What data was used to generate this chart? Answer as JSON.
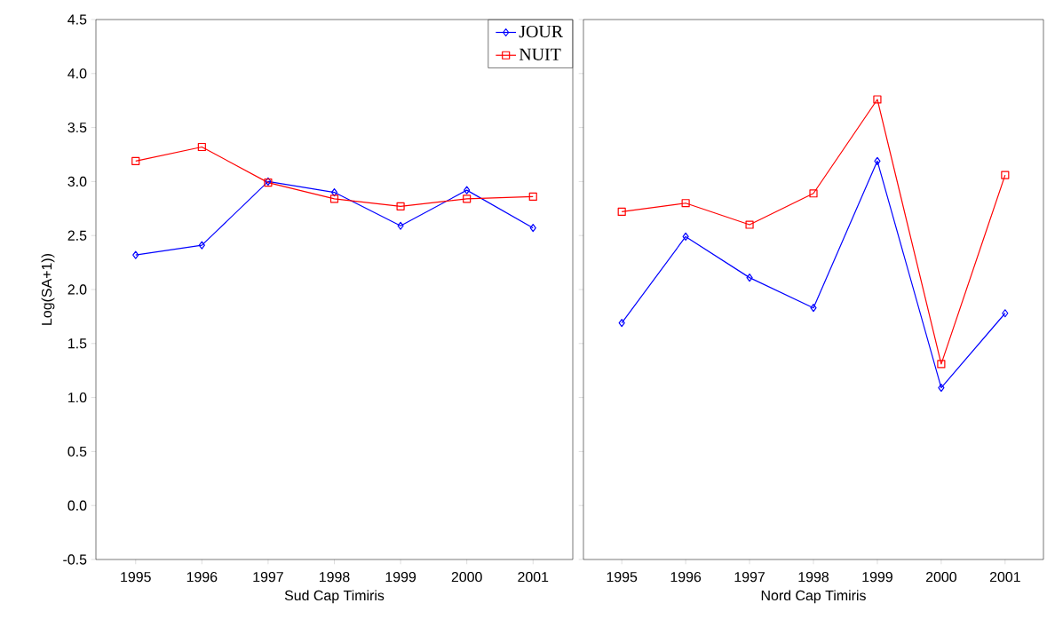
{
  "chart_data": [
    {
      "type": "line",
      "ylabel": "Log(SA+1))",
      "xlabel": "Sud Cap Timiris",
      "categories": [
        "1995",
        "1996",
        "1997",
        "1998",
        "1999",
        "2000",
        "2001"
      ],
      "ylim": [
        -0.5,
        4.5
      ],
      "yticks": [
        {
          "value": -0.5,
          "label": "-0.5"
        },
        {
          "value": 0,
          "label": "0.0"
        },
        {
          "value": 0.5,
          "label": "0.5"
        },
        {
          "value": 1,
          "label": "1.0"
        },
        {
          "value": 1.5,
          "label": "1.5"
        },
        {
          "value": 2,
          "label": "2.0"
        },
        {
          "value": 2.5,
          "label": "2.5"
        },
        {
          "value": 3,
          "label": "3.0"
        },
        {
          "value": 3.5,
          "label": "3.5"
        },
        {
          "value": 4,
          "label": "4.0"
        },
        {
          "value": 4.5,
          "label": "4.5"
        }
      ],
      "legend": "top right",
      "grid": false,
      "series": [
        {
          "name": "JOUR",
          "color": "#0000ff",
          "marker": "diamond",
          "values": [
            2.32,
            2.41,
            3.0,
            2.9,
            2.59,
            2.92,
            2.57
          ]
        },
        {
          "name": "NUIT",
          "color": "#ff0000",
          "marker": "square",
          "values": [
            3.19,
            3.32,
            2.99,
            2.84,
            2.77,
            2.84,
            2.86
          ]
        }
      ]
    },
    {
      "type": "line",
      "xlabel": "Nord Cap Timiris",
      "categories": [
        "1995",
        "1996",
        "1997",
        "1998",
        "1999",
        "2000",
        "2001"
      ],
      "ylim": [
        -0.5,
        4.5
      ],
      "yticks": [
        -0.5,
        0,
        0.5,
        1,
        1.5,
        2,
        2.5,
        3,
        3.5,
        4,
        4.5
      ],
      "tick_labels": "x",
      "grid": false,
      "series": [
        {
          "color": "#0000ff",
          "marker": "diamond",
          "values": [
            1.69,
            2.49,
            2.11,
            1.83,
            3.19,
            1.09,
            1.78
          ]
        },
        {
          "color": "#ff0000",
          "marker": "square",
          "values": [
            2.72,
            2.8,
            2.6,
            2.89,
            3.76,
            1.31,
            3.06
          ]
        }
      ]
    }
  ]
}
